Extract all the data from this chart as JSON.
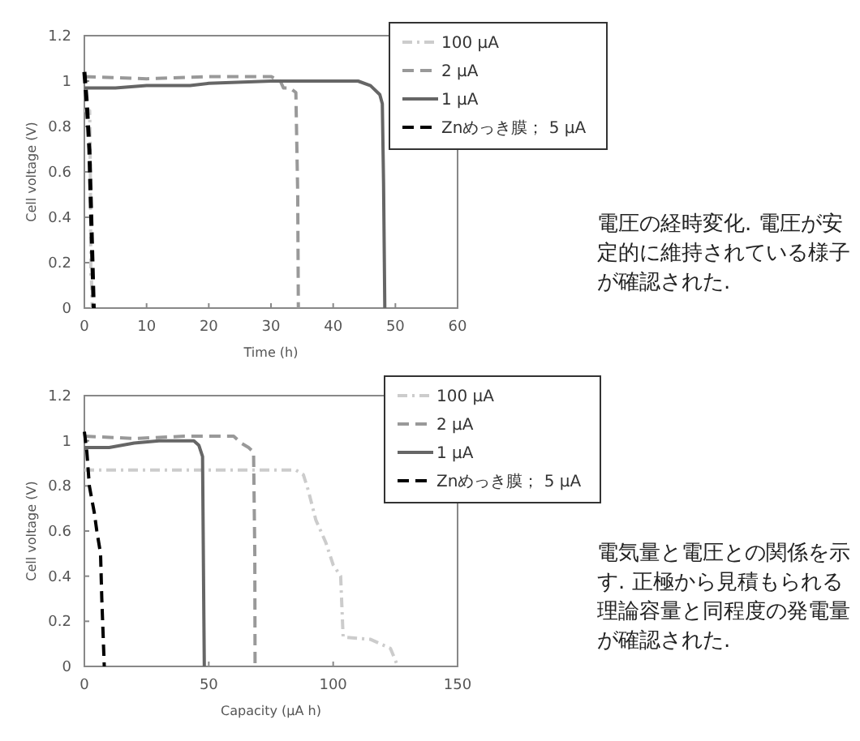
{
  "chart_data": [
    {
      "type": "line",
      "xlabel": "Time (h)",
      "ylabel": "Cell voltage (V)",
      "xlim": [
        0,
        60
      ],
      "xticks": [
        0,
        10,
        20,
        30,
        40,
        50,
        60
      ],
      "ylim": [
        0,
        1.2
      ],
      "yticks": [
        0,
        0.2,
        0.4,
        0.6,
        0.8,
        1,
        1.2
      ],
      "grid": false,
      "legend": "top right",
      "marker": "none",
      "annotations": [
        "電圧の経時変化. 電圧が安定的に維持されている様子が確認された."
      ],
      "series": [
        {
          "name": "100 µA",
          "color": "#cccccc",
          "line_style": "dotted",
          "x": [
            0,
            0.85,
            0.9,
            1.0,
            1.04,
            1.15,
            1.26
          ],
          "values": [
            0.87,
            0.87,
            0.78,
            0.45,
            0.13,
            0.12,
            0
          ]
        },
        {
          "name": "2 µA",
          "color": "#999999",
          "line_style": "dashed",
          "x": [
            0,
            10,
            20,
            30,
            31.5,
            32,
            33,
            34,
            34.3,
            34.4
          ],
          "values": [
            1.02,
            1.01,
            1.02,
            1.02,
            1.0,
            0.97,
            0.97,
            0.95,
            0.5,
            0
          ]
        },
        {
          "name": "1 µA",
          "color": "#666666",
          "line_style": "solid",
          "x": [
            0,
            5,
            10,
            17,
            20,
            30,
            40,
            44,
            46,
            47.5,
            47.9,
            48.1,
            48.3
          ],
          "values": [
            0.97,
            0.97,
            0.98,
            0.98,
            0.99,
            1.0,
            1.0,
            1.0,
            0.98,
            0.94,
            0.9,
            0.55,
            0
          ]
        },
        {
          "name": "Znめっき膜； 5 µA",
          "color": "#000000",
          "line_style": "dashed",
          "x": [
            0,
            0.4,
            0.8,
            1.0,
            1.2,
            1.4,
            1.5
          ],
          "values": [
            1.04,
            0.9,
            0.7,
            0.5,
            0.3,
            0.1,
            0
          ]
        }
      ]
    },
    {
      "type": "line",
      "xlabel": "Capacity (µA h)",
      "ylabel": "Cell voltage (V)",
      "xlim": [
        0,
        150
      ],
      "xticks": [
        0,
        50,
        100,
        150
      ],
      "ylim": [
        0,
        1.2
      ],
      "yticks": [
        0,
        0.2,
        0.4,
        0.6,
        0.8,
        1,
        1.2
      ],
      "grid": false,
      "legend": "top right",
      "marker": "none",
      "annotations": [
        "電気量と電圧との関係を示す. 正極から見積もられる理論容量と同程度の発電量が確認された."
      ],
      "series": [
        {
          "name": "100 µA",
          "color": "#cccccc",
          "line_style": "dotted",
          "x": [
            0,
            40,
            85,
            88,
            90,
            93,
            97,
            100,
            103,
            104,
            115,
            123,
            126
          ],
          "values": [
            0.87,
            0.87,
            0.87,
            0.85,
            0.78,
            0.65,
            0.55,
            0.45,
            0.4,
            0.13,
            0.12,
            0.08,
            0
          ]
        },
        {
          "name": "2 µA",
          "color": "#999999",
          "line_style": "dashed",
          "x": [
            0,
            20,
            40,
            60,
            63,
            66,
            68,
            68.5,
            68.6
          ],
          "values": [
            1.02,
            1.01,
            1.02,
            1.02,
            0.99,
            0.97,
            0.95,
            0.5,
            0
          ]
        },
        {
          "name": "1 µA",
          "color": "#666666",
          "line_style": "solid",
          "x": [
            0,
            10,
            20,
            30,
            40,
            44,
            46,
            47.5,
            48,
            48.2
          ],
          "values": [
            0.97,
            0.97,
            0.99,
            1.0,
            1.0,
            1.0,
            0.98,
            0.93,
            0.25,
            0
          ]
        },
        {
          "name": "Znめっき膜； 5 µA",
          "color": "#000000",
          "line_style": "dashed",
          "x": [
            0,
            1,
            2,
            4,
            5,
            6.5,
            7,
            7.5,
            8
          ],
          "values": [
            1.04,
            0.95,
            0.8,
            0.68,
            0.6,
            0.5,
            0.3,
            0.15,
            0
          ]
        }
      ]
    }
  ]
}
